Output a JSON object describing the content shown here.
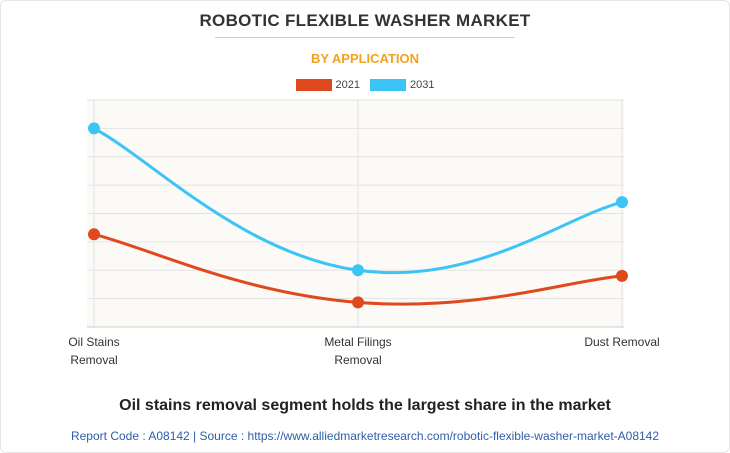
{
  "header": {
    "title": "ROBOTIC FLEXIBLE WASHER MARKET",
    "subtitle": "BY APPLICATION"
  },
  "footer": {
    "headline": "Oil stains removal segment holds the largest share in the market",
    "source_line": "Report Code : A08142  |  Source : https://www.alliedmarketresearch.com/robotic-flexible-washer-market-A08142"
  },
  "colors": {
    "series_2021": "#e0491d",
    "series_2031": "#3cc4f6",
    "grid": "#e3e3e3",
    "plot_bg": "#fbfaf7"
  },
  "chart_data": {
    "type": "line",
    "categories": [
      [
        "Oil Stains",
        "Removal"
      ],
      [
        "Metal Filings",
        "Removal"
      ],
      [
        "Dust Removal"
      ]
    ],
    "series": [
      {
        "name": "2021",
        "values": [
          4.9,
          1.3,
          2.7
        ]
      },
      {
        "name": "2031",
        "values": [
          10.5,
          3.0,
          6.6
        ]
      }
    ],
    "ylim": [
      0,
      12
    ],
    "y_grid_step": 1.5,
    "grid": true,
    "legend_position": "top-center",
    "xlabel": "",
    "ylabel": ""
  }
}
